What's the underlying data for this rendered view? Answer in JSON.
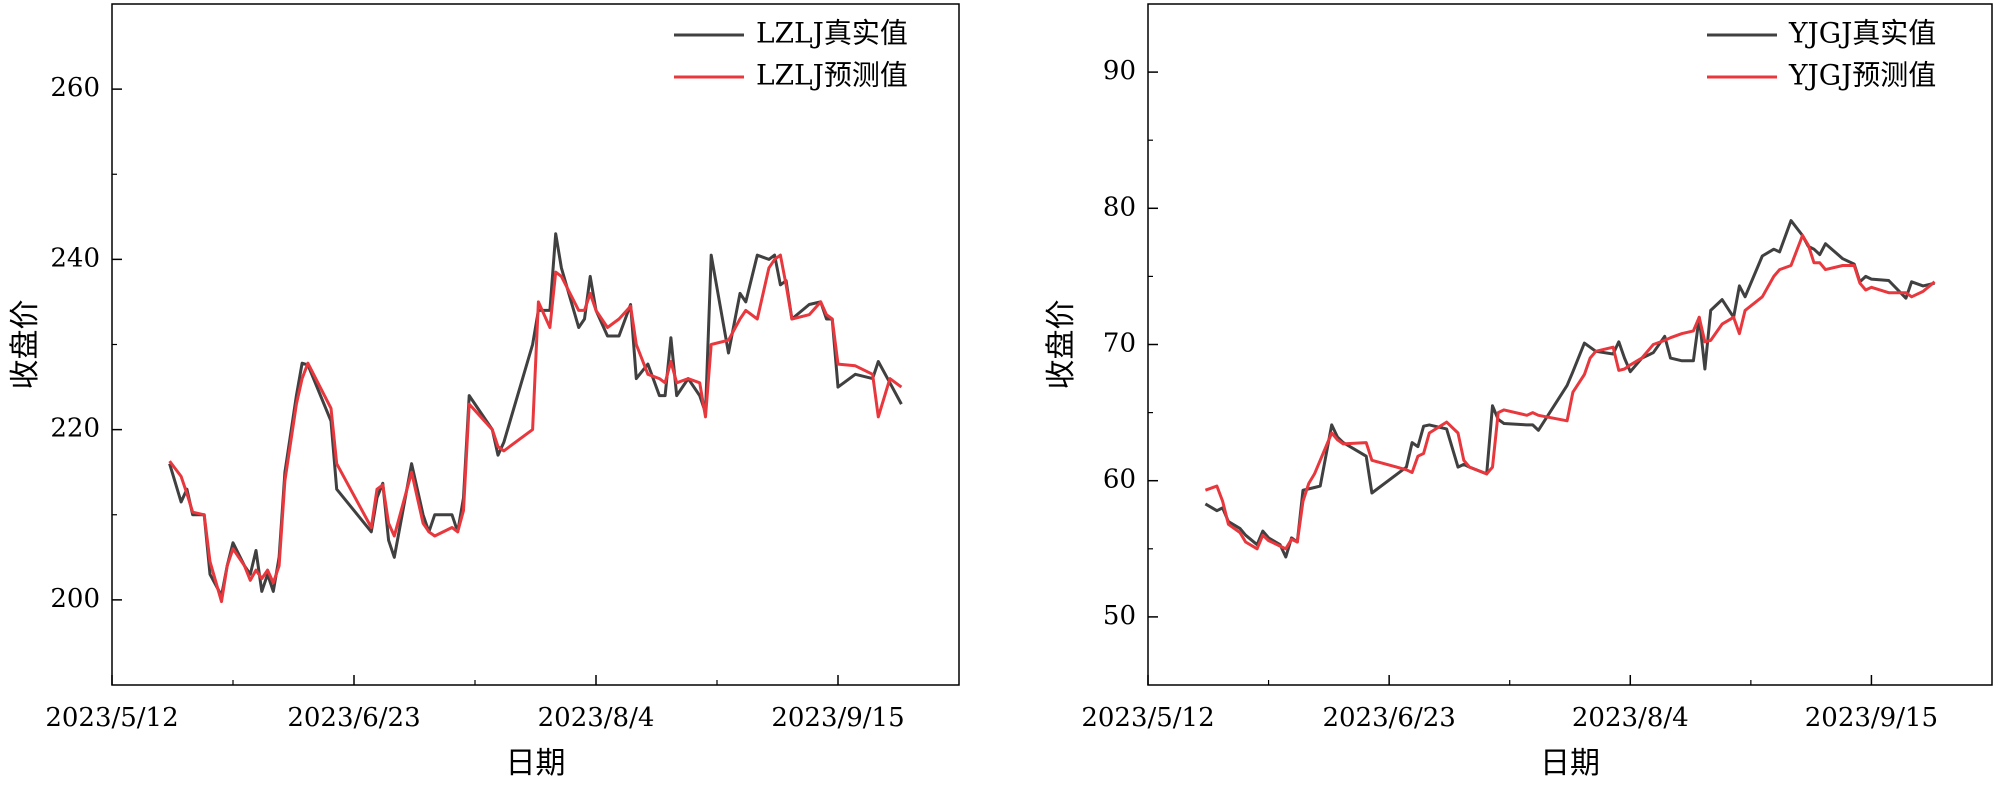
{
  "chart_data": [
    {
      "type": "line",
      "xlabel": "日期",
      "ylabel": "收盘价",
      "legend": "upper right",
      "x": [
        "2023/5/22",
        "2023/5/24",
        "2023/5/25",
        "2023/5/26",
        "2023/5/28",
        "2023/5/29",
        "2023/5/31",
        "2023/6/1",
        "2023/6/2",
        "2023/6/4",
        "2023/6/5",
        "2023/6/6",
        "2023/6/7",
        "2023/6/8",
        "2023/6/9",
        "2023/6/10",
        "2023/6/11",
        "2023/6/13",
        "2023/6/14",
        "2023/6/15",
        "2023/6/19",
        "2023/6/20",
        "2023/6/26",
        "2023/6/27",
        "2023/6/28",
        "2023/6/29",
        "2023/6/30",
        "2023/7/3",
        "2023/7/5",
        "2023/7/6",
        "2023/7/7",
        "2023/7/10",
        "2023/7/11",
        "2023/7/12",
        "2023/7/13",
        "2023/7/17",
        "2023/7/18",
        "2023/7/19",
        "2023/7/24",
        "2023/7/25",
        "2023/7/27",
        "2023/7/28",
        "2023/7/29",
        "2023/8/1",
        "2023/8/2",
        "2023/8/3",
        "2023/8/4",
        "2023/8/6",
        "2023/8/8",
        "2023/8/10",
        "2023/8/11",
        "2023/8/13",
        "2023/8/15",
        "2023/8/16",
        "2023/8/17",
        "2023/8/18",
        "2023/8/20",
        "2023/8/22",
        "2023/8/23",
        "2023/8/24",
        "2023/8/27",
        "2023/8/29",
        "2023/8/30",
        "2023/9/1",
        "2023/9/3",
        "2023/9/4",
        "2023/9/5",
        "2023/9/6",
        "2023/9/7",
        "2023/9/10",
        "2023/9/12",
        "2023/9/13",
        "2023/9/14",
        "2023/9/15",
        "2023/9/18",
        "2023/9/21",
        "2023/9/22",
        "2023/9/24",
        "2023/9/26"
      ],
      "series": [
        {
          "name": "LZLJ真实值",
          "color": "#404040",
          "values": [
            216,
            211.5,
            213,
            210,
            210,
            203,
            200.5,
            204,
            206.7,
            204,
            203,
            205.8,
            201,
            203,
            201,
            205,
            215,
            224,
            227.8,
            227.6,
            221,
            213,
            208,
            212,
            213.7,
            207,
            205,
            216,
            210,
            208,
            210,
            210,
            208,
            212,
            224,
            220,
            217,
            218.5,
            230,
            234,
            234,
            243,
            239,
            232,
            233,
            238,
            234,
            231,
            231,
            234.7,
            226,
            227.7,
            224,
            224,
            230.8,
            224,
            226,
            224,
            222,
            240.5,
            229,
            236,
            235,
            240.5,
            240,
            240.5,
            237,
            237.5,
            233,
            234.7,
            235,
            233,
            233,
            225,
            226.5,
            226,
            228,
            225.5,
            223
          ]
        },
        {
          "name": "LZLJ预测值",
          "color": "#e8383d",
          "values": [
            216.3,
            214.5,
            212.5,
            210.3,
            210,
            204.5,
            199.8,
            204,
            206,
            204,
            202.3,
            203.5,
            202.5,
            203.5,
            202,
            204,
            214,
            223,
            226,
            227.8,
            222.5,
            216,
            208.5,
            213,
            213.5,
            209,
            207.5,
            215,
            209,
            208,
            207.5,
            208.5,
            208,
            210.5,
            223,
            220,
            218,
            217.5,
            220,
            235,
            232,
            238.5,
            238,
            234,
            234,
            236,
            234,
            232,
            233,
            234.5,
            230,
            226.5,
            226,
            225.5,
            228,
            225.5,
            226,
            225.5,
            221.5,
            230,
            230.5,
            233,
            234,
            233,
            239,
            240,
            240.5,
            237,
            233,
            233.5,
            235,
            233.5,
            233,
            227.7,
            227.5,
            226.5,
            221.5,
            226,
            225
          ]
        }
      ],
      "xlim": [
        "2023/5/12",
        "2023/10/6"
      ],
      "xticks": [
        "2023/5/12",
        "2023/6/23",
        "2023/8/4",
        "2023/9/15"
      ],
      "ylim": [
        190,
        270
      ],
      "yticks": [
        200,
        220,
        240,
        260
      ]
    },
    {
      "type": "line",
      "xlabel": "日期",
      "ylabel": "收盘价",
      "legend": "upper right",
      "x": [
        "2023/5/22",
        "2023/5/24",
        "2023/5/25",
        "2023/5/26",
        "2023/5/28",
        "2023/5/29",
        "2023/5/31",
        "2023/6/1",
        "2023/6/2",
        "2023/6/4",
        "2023/6/5",
        "2023/6/6",
        "2023/6/7",
        "2023/6/8",
        "2023/6/9",
        "2023/6/10",
        "2023/6/11",
        "2023/6/13",
        "2023/6/14",
        "2023/6/15",
        "2023/6/19",
        "2023/6/20",
        "2023/6/26",
        "2023/6/27",
        "2023/6/28",
        "2023/6/29",
        "2023/6/30",
        "2023/7/3",
        "2023/7/5",
        "2023/7/6",
        "2023/7/7",
        "2023/7/10",
        "2023/7/11",
        "2023/7/12",
        "2023/7/13",
        "2023/7/17",
        "2023/7/18",
        "2023/7/19",
        "2023/7/24",
        "2023/7/25",
        "2023/7/27",
        "2023/7/28",
        "2023/7/29",
        "2023/8/1",
        "2023/8/2",
        "2023/8/3",
        "2023/8/4",
        "2023/8/6",
        "2023/8/8",
        "2023/8/10",
        "2023/8/11",
        "2023/8/13",
        "2023/8/15",
        "2023/8/16",
        "2023/8/17",
        "2023/8/18",
        "2023/8/20",
        "2023/8/22",
        "2023/8/23",
        "2023/8/24",
        "2023/8/27",
        "2023/8/29",
        "2023/8/30",
        "2023/9/1",
        "2023/9/3",
        "2023/9/4",
        "2023/9/5",
        "2023/9/6",
        "2023/9/7",
        "2023/9/10",
        "2023/9/12",
        "2023/9/13",
        "2023/9/14",
        "2023/9/15",
        "2023/9/18",
        "2023/9/21",
        "2023/9/22",
        "2023/9/24",
        "2023/9/26"
      ],
      "series": [
        {
          "name": "YJGJ真实值",
          "color": "#404040",
          "values": [
            58.3,
            57.8,
            58,
            57,
            56.5,
            56,
            55.3,
            56.3,
            55.8,
            55.3,
            54.4,
            55.8,
            55.5,
            59.3,
            59.4,
            59.5,
            59.6,
            64.1,
            63.2,
            62.8,
            61.8,
            59.1,
            61,
            62.8,
            62.5,
            64,
            64.1,
            63.8,
            61,
            61.2,
            61,
            60.5,
            65.5,
            64.5,
            64.2,
            64.1,
            64.1,
            63.7,
            67,
            68,
            70.1,
            69.8,
            69.5,
            69.3,
            70.2,
            69,
            68,
            69,
            69.4,
            70.6,
            69,
            68.8,
            68.8,
            72,
            68.2,
            72.5,
            73.3,
            72,
            74.3,
            73.5,
            76.5,
            77,
            76.8,
            79.1,
            78,
            77.2,
            77,
            76.6,
            77.4,
            76.3,
            75.9,
            74.6,
            75,
            74.8,
            74.7,
            73.4,
            74.6,
            74.3,
            74.5
          ]
        },
        {
          "name": "YJGJ预测值",
          "color": "#e8383d",
          "values": [
            59.3,
            59.6,
            58.5,
            56.8,
            56.2,
            55.5,
            55,
            56,
            55.6,
            55.2,
            55,
            55.7,
            55.5,
            58.5,
            59.8,
            60.5,
            61.5,
            63.5,
            63,
            62.7,
            62.8,
            61.5,
            60.8,
            60.6,
            61.8,
            62,
            63.5,
            64.3,
            63.5,
            61.5,
            61,
            60.5,
            61,
            65,
            65.2,
            64.8,
            65,
            64.8,
            64.4,
            66.5,
            67.8,
            69,
            69.5,
            69.8,
            68.1,
            68.2,
            68.5,
            69,
            70,
            70.3,
            70.5,
            70.8,
            71,
            72,
            70.2,
            70.3,
            71.5,
            72,
            70.8,
            72.5,
            73.5,
            75,
            75.5,
            75.8,
            78,
            77.3,
            76,
            76,
            75.5,
            75.8,
            75.8,
            74.5,
            74,
            74.2,
            73.8,
            73.8,
            73.5,
            73.9,
            74.6
          ]
        }
      ],
      "xlim": [
        "2023/5/12",
        "2023/10/6"
      ],
      "xticks": [
        "2023/5/12",
        "2023/6/23",
        "2023/8/4",
        "2023/9/15"
      ],
      "ylim": [
        45,
        95
      ],
      "yticks": [
        50,
        60,
        70,
        80,
        90
      ]
    }
  ]
}
